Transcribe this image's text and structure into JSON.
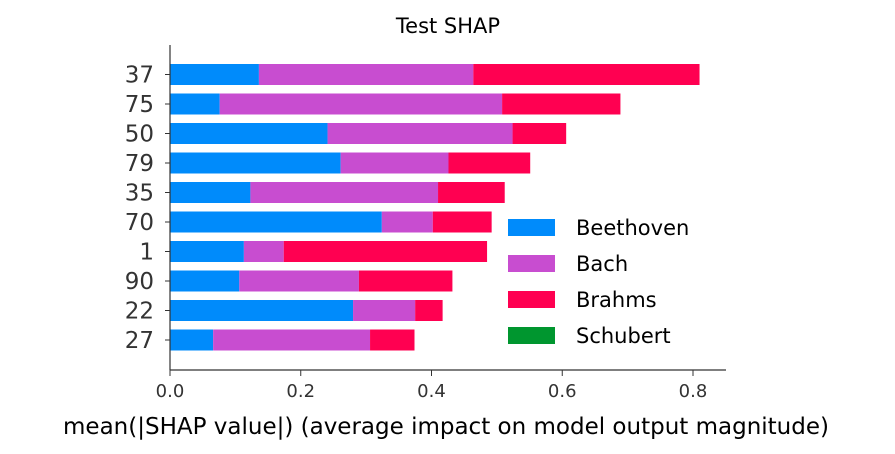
{
  "chart_data": {
    "type": "bar",
    "orientation": "horizontal",
    "stacked": true,
    "title": "Test SHAP",
    "xlabel": "mean(|SHAP value|) (average impact on model output magnitude)",
    "ylabel": "",
    "xlim": [
      0,
      0.85
    ],
    "xticks": [
      "0.0",
      "0.2",
      "0.4",
      "0.6",
      "0.8"
    ],
    "categories": [
      "37",
      "75",
      "50",
      "79",
      "35",
      "70",
      "1",
      "90",
      "22",
      "27"
    ],
    "series": [
      {
        "name": "Beethoven",
        "color": "#008bfb",
        "values": [
          0.136,
          0.076,
          0.241,
          0.261,
          0.123,
          0.324,
          0.113,
          0.106,
          0.28,
          0.066
        ]
      },
      {
        "name": "Bach",
        "color": "#c84dd0",
        "values": [
          0.328,
          0.432,
          0.283,
          0.165,
          0.287,
          0.078,
          0.061,
          0.183,
          0.095,
          0.24
        ]
      },
      {
        "name": "Brahms",
        "color": "#ff0051",
        "values": [
          0.346,
          0.181,
          0.082,
          0.125,
          0.102,
          0.09,
          0.311,
          0.143,
          0.042,
          0.068
        ]
      },
      {
        "name": "Schubert",
        "color": "#00962f",
        "values": [
          0.0,
          0.0,
          0.0,
          0.0,
          0.0,
          0.0,
          0.0,
          0.0,
          0.0,
          0.0
        ]
      }
    ],
    "legend": {
      "placement": "lower-right"
    },
    "grid": false
  }
}
